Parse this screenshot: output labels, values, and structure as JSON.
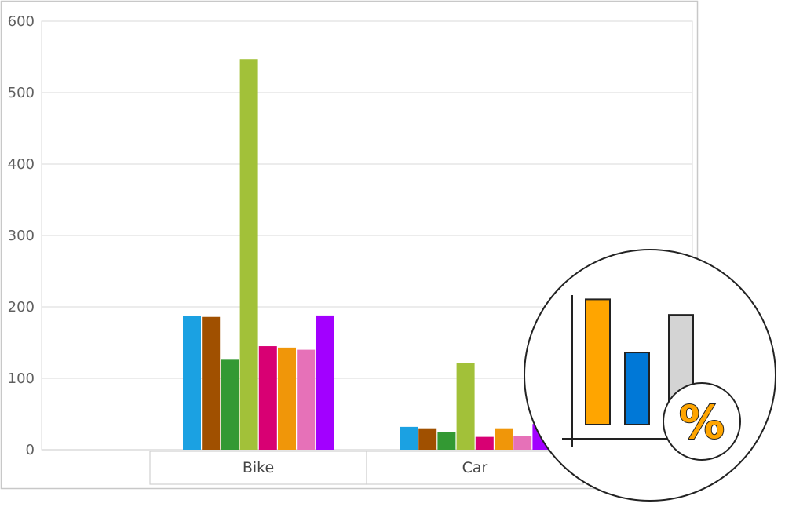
{
  "chart_data": {
    "type": "bar",
    "categories": [
      "Bike",
      "Car"
    ],
    "ylim": [
      0,
      600
    ],
    "yticks": [
      0,
      100,
      200,
      300,
      400,
      500,
      600
    ],
    "grid": true,
    "series": [
      {
        "color": "#1ba1e2",
        "values": [
          187,
          32
        ]
      },
      {
        "color": "#a05000",
        "values": [
          186,
          30
        ]
      },
      {
        "color": "#339933",
        "values": [
          126,
          25
        ]
      },
      {
        "color": "#a2c139",
        "values": [
          547,
          121
        ]
      },
      {
        "color": "#d80073",
        "values": [
          145,
          18
        ]
      },
      {
        "color": "#f09609",
        "values": [
          143,
          30
        ]
      },
      {
        "color": "#e671b8",
        "values": [
          140,
          19
        ]
      },
      {
        "color": "#a200ff",
        "values": [
          188,
          36
        ]
      }
    ]
  },
  "overlay_badge": {
    "symbol": "%",
    "icon": "percent-bar-chart-icon",
    "bar_colors": [
      "#ffa500",
      "#0078d7",
      "#d4d4d4"
    ],
    "bar_levels": [
      210,
      121,
      184
    ]
  }
}
